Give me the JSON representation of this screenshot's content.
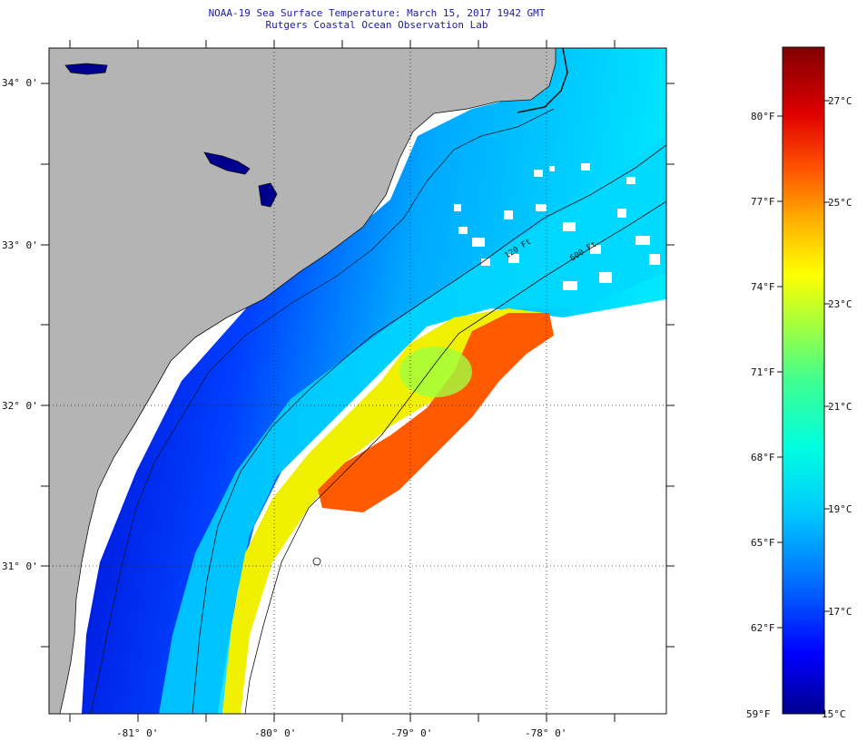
{
  "title": "NOAA-19 Sea Surface Temperature:  March 15, 2017 1942 GMT",
  "subtitle": "Rutgers Coastal Ocean Observation Lab",
  "map": {
    "lat_labels": [
      "34° 0'",
      "33° 0'",
      "32° 0'",
      "31° 0'"
    ],
    "lon_labels": [
      "-81° 0'",
      "-80° 0'",
      "-79° 0'",
      "-78° 0'"
    ],
    "contours": [
      {
        "name": "isobath-120ft",
        "label": "120 Ft"
      },
      {
        "name": "isobath-600ft",
        "label": "600 Ft"
      }
    ],
    "colors": {
      "land": "#b4b4b4",
      "no_data": "#ffffff",
      "graticule": "#222222"
    }
  },
  "colorbar": {
    "min_label_f": "59°F",
    "min_label_c": "15°C",
    "fahrenheit_ticks": [
      "80°F",
      "77°F",
      "74°F",
      "71°F",
      "68°F",
      "65°F",
      "62°F"
    ],
    "celsius_ticks": [
      "27°C",
      "25°C",
      "23°C",
      "21°C",
      "19°C",
      "17°C"
    ],
    "colors": [
      "#00008f",
      "#0000ff",
      "#0070ff",
      "#00c8ff",
      "#00ffe0",
      "#40ff90",
      "#a0ff40",
      "#ffff00",
      "#ffb000",
      "#ff5000",
      "#e00000",
      "#800000"
    ]
  }
}
